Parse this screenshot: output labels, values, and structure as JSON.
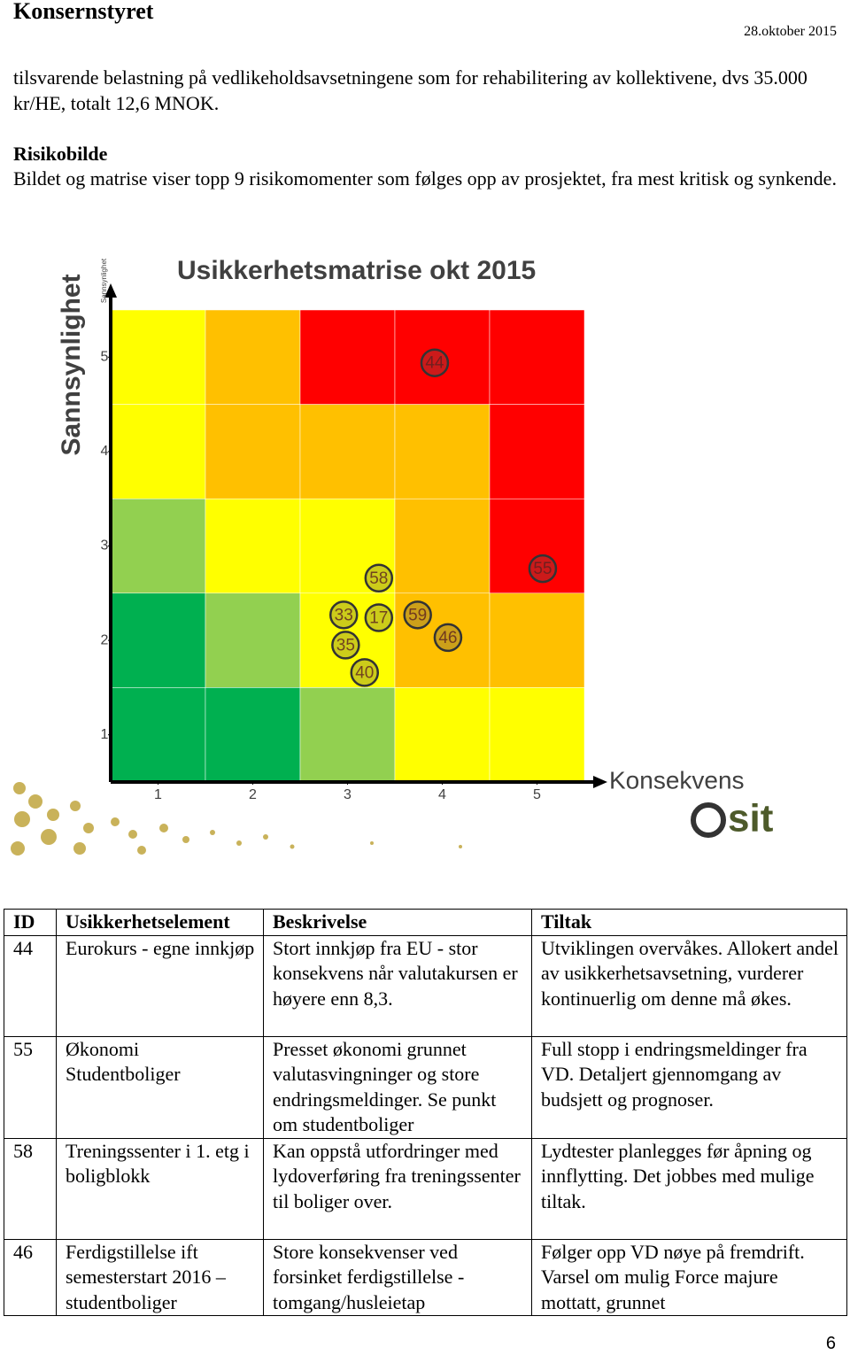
{
  "header": {
    "title": "Konsernstyret",
    "date": "28.oktober 2015"
  },
  "body": {
    "intro": "tilsvarende belastning på vedlikeholdsavsetningene som for rehabilitering av kollektivene, dvs 35.000 kr/HE, totalt 12,6 MNOK.",
    "heading": "Risikobilde",
    "paragraph": "Bildet og matrise viser topp 9 risikomomenter som følges opp av prosjektet, fra mest kritisk og synkende."
  },
  "figure": {
    "title": "Usikkerhetsmatrise okt 2015",
    "y_label": "Sannsynlighet",
    "y_label_small": "Sannsynlighet",
    "x_label": "Konsekvens",
    "logo": "sit",
    "xlim": [
      0.5,
      5.5
    ],
    "ylim": [
      0.5,
      5.5
    ],
    "xticks": [
      1,
      2,
      3,
      4,
      5
    ],
    "yticks": [
      1,
      2,
      3,
      4,
      5
    ],
    "cell_colors": [
      [
        "#ffff00",
        "#ffc000",
        "#ff0000",
        "#ff0000",
        "#ff0000"
      ],
      [
        "#ffff00",
        "#ffc000",
        "#ffc000",
        "#ffc000",
        "#ff0000"
      ],
      [
        "#92d050",
        "#ffff00",
        "#ffff00",
        "#ffc000",
        "#ff0000"
      ],
      [
        "#00b050",
        "#92d050",
        "#ffff00",
        "#ffc000",
        "#ffc000"
      ],
      [
        "#00b050",
        "#00b050",
        "#92d050",
        "#ffff00",
        "#ffff00"
      ]
    ],
    "points": [
      {
        "label": "44",
        "x": 3.92,
        "y": 4.94
      },
      {
        "label": "55",
        "x": 5.06,
        "y": 2.76
      },
      {
        "label": "58",
        "x": 3.33,
        "y": 2.66
      },
      {
        "label": "33",
        "x": 2.96,
        "y": 2.27
      },
      {
        "label": "17",
        "x": 3.33,
        "y": 2.24
      },
      {
        "label": "59",
        "x": 3.74,
        "y": 2.27
      },
      {
        "label": "46",
        "x": 4.06,
        "y": 2.03
      },
      {
        "label": "35",
        "x": 2.98,
        "y": 1.95
      },
      {
        "label": "40",
        "x": 3.18,
        "y": 1.66
      }
    ]
  },
  "table": {
    "columns": [
      "ID",
      "Usikkerhetselement",
      "Beskrivelse",
      "Tiltak"
    ],
    "rows": [
      [
        "44",
        "Eurokurs - egne innkjøp",
        "Stort innkjøp fra EU - stor konsekvens når valutakursen er høyere enn 8,3.",
        "Utviklingen overvåkes. Allokert andel av usikkerhetsavsetning, vurderer kontinuerlig om denne må økes."
      ],
      [
        "55",
        "Økonomi Studentboliger",
        "Presset økonomi grunnet valutasvingninger og store endringsmeldinger. Se punkt om studentboliger",
        "Full stopp i endringsmeldinger fra VD. Detaljert gjennomgang av budsjett og prognoser."
      ],
      [
        "58",
        "Treningssenter i 1. etg i boligblokk",
        "Kan oppstå utfordringer med lydoverføring fra treningssenter til boliger over.",
        "Lydtester planlegges før åpning og innflytting. Det jobbes med mulige tiltak."
      ],
      [
        "46",
        "Ferdigstillelse ift semesterstart 2016 – studentboliger",
        "Store konsekvenser ved forsinket ferdigstillelse - tomgang/husleietap",
        "Følger opp VD nøye på fremdrift. Varsel om mulig Force majure mottatt, grunnet"
      ]
    ]
  },
  "page_number": "6"
}
